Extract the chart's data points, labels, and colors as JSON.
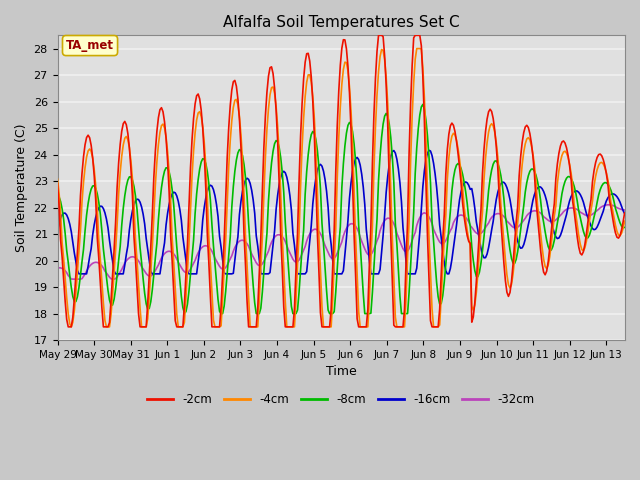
{
  "title": "Alfalfa Soil Temperatures Set C",
  "xlabel": "Time",
  "ylabel": "Soil Temperature (C)",
  "ylim": [
    17.0,
    28.5
  ],
  "yticks": [
    17.0,
    18.0,
    19.0,
    20.0,
    21.0,
    22.0,
    23.0,
    24.0,
    25.0,
    26.0,
    27.0,
    28.0
  ],
  "plot_bg_color": "#e0e0e0",
  "fig_bg_color": "#c8c8c8",
  "grid_color": "#f0f0f0",
  "annotation_label": "TA_met",
  "annotation_box_color": "#ffffcc",
  "annotation_text_color": "#990000",
  "colors": {
    "-2cm": "#ee1100",
    "-4cm": "#ff8800",
    "-8cm": "#00bb00",
    "-16cm": "#0000cc",
    "-32cm": "#bb44bb"
  },
  "line_width": 1.2,
  "tick_labels": [
    "May 29",
    "May 30",
    "May 31",
    "Jun 1",
    "Jun 2",
    "Jun 3",
    "Jun 4",
    "Jun 5",
    "Jun 6",
    "Jun 7",
    "Jun 8",
    "Jun 9",
    "Jun 10",
    "Jun 11",
    "Jun 12",
    "Jun 13"
  ],
  "tick_positions": [
    0,
    1,
    2,
    3,
    4,
    5,
    6,
    7,
    8,
    9,
    10,
    11,
    12,
    13,
    14,
    15
  ]
}
